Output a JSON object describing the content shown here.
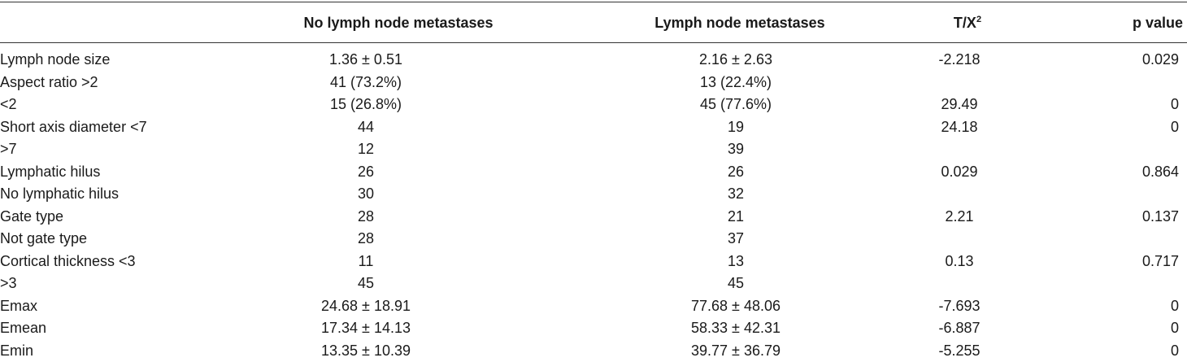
{
  "table": {
    "headers": {
      "label": "",
      "no_metastases": "No lymph node metastases",
      "metastases": "Lymph node metastases",
      "tx_base": "T/X",
      "tx_sup": "2",
      "p_value": "p value"
    },
    "rows": [
      {
        "label": "Lymph node size",
        "no_metastases": "1.36 ± 0.51",
        "metastases": "2.16 ± 2.63",
        "tx": "-2.218",
        "p": "0.029"
      },
      {
        "label": "Aspect ratio >2",
        "no_metastases": "41 (73.2%)",
        "metastases": "13 (22.4%)",
        "tx": "",
        "p": ""
      },
      {
        "label": "<2",
        "no_metastases": "15 (26.8%)",
        "metastases": "45 (77.6%)",
        "tx": "29.49",
        "p": "0"
      },
      {
        "label": "Short axis diameter <7",
        "no_metastases": "44",
        "metastases": "19",
        "tx": "24.18",
        "p": "0"
      },
      {
        "label": ">7",
        "no_metastases": "12",
        "metastases": "39",
        "tx": "",
        "p": ""
      },
      {
        "label": "Lymphatic hilus",
        "no_metastases": "26",
        "metastases": "26",
        "tx": "0.029",
        "p": "0.864"
      },
      {
        "label": "No lymphatic hilus",
        "no_metastases": "30",
        "metastases": "32",
        "tx": "",
        "p": ""
      },
      {
        "label": "Gate type",
        "no_metastases": "28",
        "metastases": "21",
        "tx": "2.21",
        "p": "0.137"
      },
      {
        "label": "Not gate type",
        "no_metastases": "28",
        "metastases": "37",
        "tx": "",
        "p": ""
      },
      {
        "label": "Cortical thickness <3",
        "no_metastases": "11",
        "metastases": "13",
        "tx": "0.13",
        "p": "0.717"
      },
      {
        "label": ">3",
        "no_metastases": "45",
        "metastases": "45",
        "tx": "",
        "p": ""
      },
      {
        "label": "Emax",
        "no_metastases": "24.68 ± 18.91",
        "metastases": "77.68 ± 48.06",
        "tx": "-7.693",
        "p": "0"
      },
      {
        "label": "Emean",
        "no_metastases": "17.34 ± 14.13",
        "metastases": "58.33 ± 42.31",
        "tx": "-6.887",
        "p": "0"
      },
      {
        "label": "Emin",
        "no_metastases": "13.35 ± 10.39",
        "metastases": "39.77 ± 36.79",
        "tx": "-5.255",
        "p": "0"
      }
    ]
  }
}
